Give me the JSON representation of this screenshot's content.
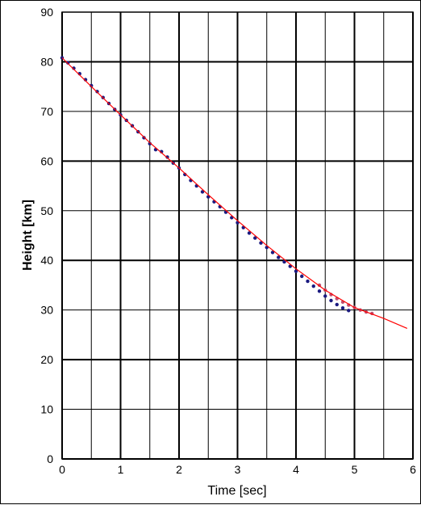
{
  "chart_data": {
    "type": "scatter",
    "title": "",
    "xlabel": "Time [sec]",
    "ylabel": "Height [km]",
    "xlim": [
      0,
      6
    ],
    "ylim": [
      0,
      90
    ],
    "x_ticks": [
      "0",
      "1",
      "2",
      "3",
      "4",
      "5",
      "6"
    ],
    "y_ticks": [
      "0",
      "10",
      "20",
      "30",
      "40",
      "50",
      "60",
      "70",
      "80",
      "90"
    ],
    "grid": true,
    "legend": "none",
    "series": [
      {
        "kind": "points",
        "color": "#1a1a80",
        "points": [
          [
            0.0,
            80.8
          ],
          [
            0.1,
            79.8
          ],
          [
            0.2,
            78.7
          ],
          [
            0.3,
            77.6
          ],
          [
            0.4,
            76.4
          ],
          [
            0.5,
            75.2
          ],
          [
            0.6,
            74.0
          ],
          [
            0.7,
            72.8
          ],
          [
            0.8,
            71.6
          ],
          [
            0.9,
            70.4
          ],
          [
            1.0,
            69.3
          ],
          [
            1.1,
            68.2
          ],
          [
            1.2,
            67.1
          ],
          [
            1.3,
            65.9
          ],
          [
            1.4,
            64.7
          ],
          [
            1.5,
            63.5
          ],
          [
            1.6,
            62.3
          ],
          [
            1.7,
            61.9
          ],
          [
            1.8,
            60.8
          ],
          [
            1.9,
            59.6
          ],
          [
            2.0,
            58.6
          ],
          [
            2.1,
            57.3
          ],
          [
            2.2,
            56.1
          ],
          [
            2.3,
            55.0
          ],
          [
            2.4,
            53.8
          ],
          [
            2.5,
            52.8
          ],
          [
            2.6,
            51.8
          ],
          [
            2.7,
            50.8
          ],
          [
            2.8,
            49.7
          ],
          [
            2.9,
            48.6
          ],
          [
            3.0,
            47.6
          ],
          [
            3.1,
            46.6
          ],
          [
            3.2,
            45.5
          ],
          [
            3.3,
            44.5
          ],
          [
            3.4,
            43.5
          ],
          [
            3.5,
            42.6
          ],
          [
            3.6,
            41.6
          ],
          [
            3.7,
            40.6
          ],
          [
            3.8,
            39.7
          ],
          [
            3.9,
            38.8
          ],
          [
            4.0,
            37.8
          ],
          [
            4.1,
            36.8
          ],
          [
            4.2,
            35.8
          ],
          [
            4.3,
            34.8
          ],
          [
            4.4,
            33.8
          ],
          [
            4.5,
            32.8
          ],
          [
            4.6,
            31.9
          ],
          [
            4.7,
            31.1
          ],
          [
            4.8,
            30.4
          ],
          [
            4.9,
            29.9
          ]
        ]
      },
      {
        "kind": "points",
        "color": "#c05070",
        "points": [
          [
            4.4,
            35.0
          ],
          [
            4.5,
            34.0
          ],
          [
            4.6,
            33.1
          ],
          [
            4.7,
            32.3
          ],
          [
            4.8,
            31.6
          ],
          [
            4.9,
            31.0
          ],
          [
            5.0,
            30.5
          ],
          [
            5.1,
            30.0
          ],
          [
            5.2,
            29.6
          ],
          [
            5.3,
            29.3
          ]
        ]
      },
      {
        "kind": "line",
        "color": "#ff0000",
        "points": [
          [
            0.0,
            80.8
          ],
          [
            0.5,
            75.0
          ],
          [
            1.0,
            69.3
          ],
          [
            1.5,
            63.7
          ],
          [
            2.0,
            58.6
          ],
          [
            2.5,
            53.2
          ],
          [
            3.0,
            48.0
          ],
          [
            3.5,
            43.0
          ],
          [
            4.0,
            38.3
          ],
          [
            4.5,
            34.0
          ],
          [
            5.0,
            30.5
          ],
          [
            5.5,
            28.3
          ],
          [
            5.9,
            26.3
          ]
        ]
      }
    ]
  }
}
